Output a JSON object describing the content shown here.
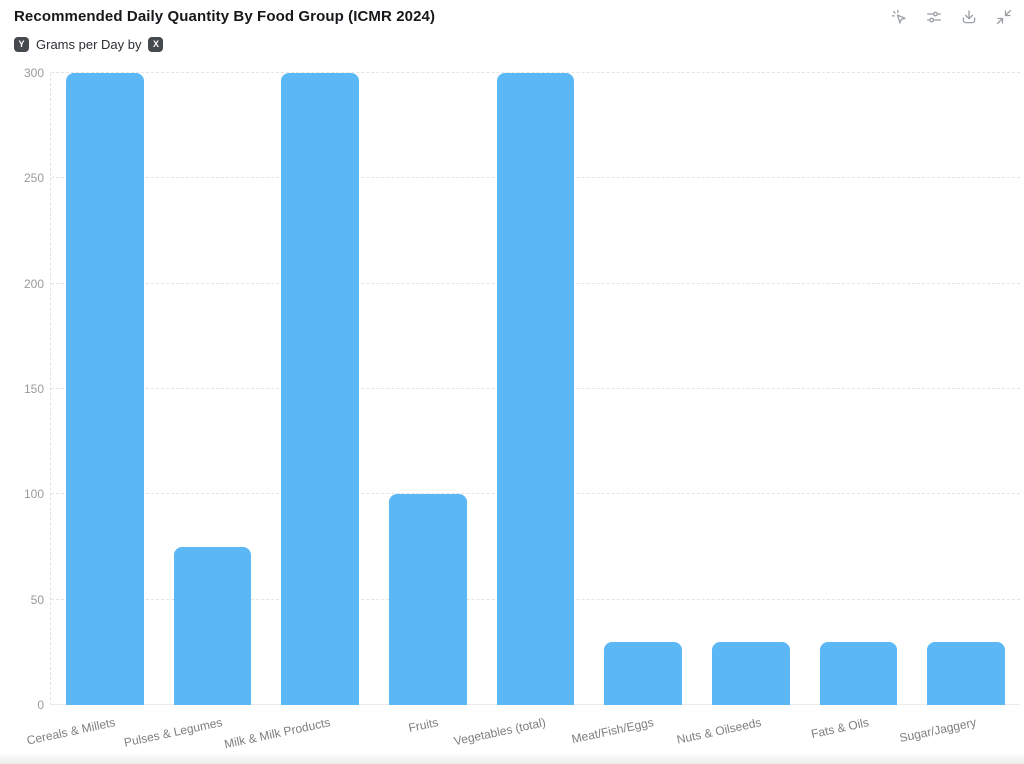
{
  "header": {
    "title": "Recommended Daily Quantity By Food Group (ICMR 2024)"
  },
  "toolbar": {
    "buttons": [
      {
        "icon": "cursor-sparkle-icon"
      },
      {
        "icon": "sliders-icon"
      },
      {
        "icon": "download-icon"
      },
      {
        "icon": "collapse-icon"
      }
    ]
  },
  "subtitle": {
    "y_badge": "Y",
    "text": "Grams per Day by",
    "x_badge": "X"
  },
  "chart_data": {
    "type": "bar",
    "title": "Recommended Daily Quantity By Food Group (ICMR 2024)",
    "categories": [
      "Cereals & Millets",
      "Pulses & Legumes",
      "Milk & Milk Products",
      "Fruits",
      "Vegetables (total)",
      "Meat/Fish/Eggs",
      "Nuts & Oilseeds",
      "Fats & Oils",
      "Sugar/Jaggery"
    ],
    "values": [
      300,
      75,
      300,
      100,
      300,
      30,
      30,
      30,
      30
    ],
    "xlabel": "",
    "ylabel": "Grams per Day",
    "ylim": [
      0,
      300
    ],
    "yticks": [
      0,
      50,
      100,
      150,
      200,
      250,
      300
    ],
    "grid": true,
    "legend": false,
    "color": "#5BB8F5"
  },
  "colors": {
    "bar": "#5BB8F5",
    "gridline": "#e4e4e4",
    "y_tick_label": "#9a9a9a",
    "x_tick_label": "#7e7e7e",
    "title": "#16181b",
    "badge_bg": "#46494d",
    "icon": "#979da3"
  }
}
